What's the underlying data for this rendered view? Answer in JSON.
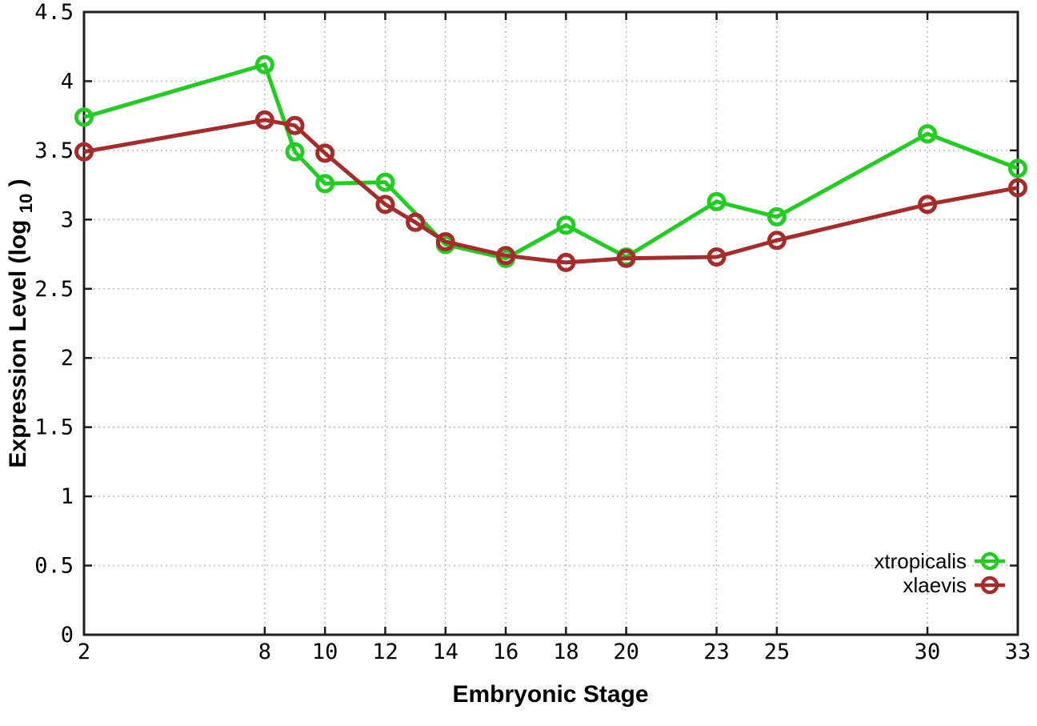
{
  "chart_data": {
    "type": "line",
    "title": "",
    "xlabel": "Embryonic Stage",
    "ylabel": {
      "prefix": "Expression Level (log",
      "sub": "10",
      "suffix": ")"
    },
    "xlim": [
      2,
      33
    ],
    "ylim": [
      0,
      4.5
    ],
    "xticks": [
      2,
      8,
      10,
      12,
      14,
      16,
      18,
      20,
      23,
      25,
      30,
      33
    ],
    "xtick_labels": [
      "2",
      "8",
      "10",
      "12",
      "14",
      "16",
      "18",
      "20",
      "23",
      "25",
      "30",
      "33"
    ],
    "yticks": [
      0,
      0.5,
      1,
      1.5,
      2,
      2.5,
      3,
      3.5,
      4,
      4.5
    ],
    "ytick_labels": [
      "0",
      "0.5",
      "1",
      "1.5",
      "2",
      "2.5",
      "3",
      "3.5",
      "4",
      "4.5"
    ],
    "grid": true,
    "legend_position": "inside-bottom-right",
    "marker": "open-circle",
    "series": [
      {
        "name": "xtropicalis",
        "color": "#21cd21",
        "x": [
          2,
          8,
          9,
          10,
          12,
          14,
          16,
          18,
          20,
          23,
          25,
          30,
          33
        ],
        "y": [
          3.74,
          4.12,
          3.49,
          3.26,
          3.27,
          2.82,
          2.72,
          2.96,
          2.73,
          3.13,
          3.02,
          3.62,
          3.37
        ]
      },
      {
        "name": "xlaevis",
        "color": "#a62c2c",
        "x": [
          2,
          8,
          9,
          10,
          12,
          13,
          14,
          16,
          18,
          20,
          23,
          25,
          30,
          33
        ],
        "y": [
          3.49,
          3.72,
          3.68,
          3.48,
          3.11,
          2.98,
          2.84,
          2.74,
          2.69,
          2.72,
          2.73,
          2.85,
          3.11,
          3.23
        ]
      }
    ],
    "colors": {
      "background": "#ffffff",
      "grid": "#bbbbbb",
      "border": "#1c1c1c",
      "text": "#000000"
    }
  }
}
